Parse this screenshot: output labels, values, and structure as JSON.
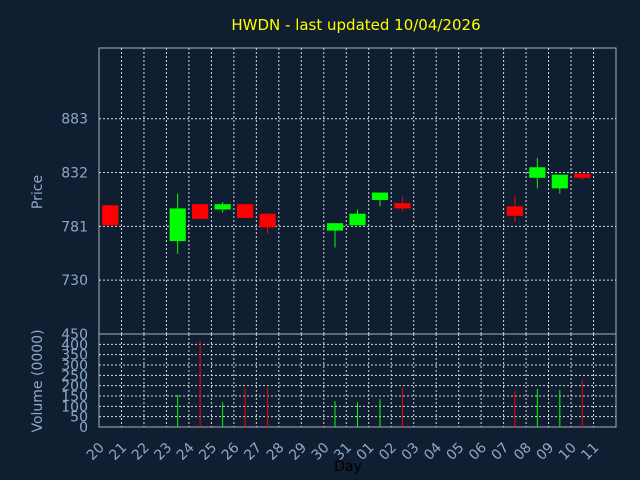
{
  "chart_data": [
    {
      "type": "candlestick",
      "title": "HWDN - last updated 10/04/2026",
      "ylabel": "Price",
      "ylim": [
        679,
        950
      ],
      "yticks": [
        730,
        781,
        832,
        883
      ],
      "grid": true,
      "colors": {
        "up": "#00ff00",
        "down": "#ff0000",
        "text": "#ffff00",
        "axis_label": "#8fa8c8",
        "background": "#0f1e31"
      },
      "candles": [
        {
          "day": "20",
          "open": 801,
          "high": 801,
          "low": 782,
          "close": 782
        },
        {
          "day": "23",
          "open": 767,
          "high": 812,
          "low": 755,
          "close": 798
        },
        {
          "day": "24",
          "open": 802,
          "high": 802,
          "low": 788,
          "close": 788
        },
        {
          "day": "25",
          "open": 797,
          "high": 804,
          "low": 794,
          "close": 802
        },
        {
          "day": "26",
          "open": 802,
          "high": 802,
          "low": 789,
          "close": 789
        },
        {
          "day": "27",
          "open": 793,
          "high": 793,
          "low": 774,
          "close": 780
        },
        {
          "day": "30",
          "open": 777,
          "high": 784,
          "low": 761,
          "close": 784
        },
        {
          "day": "31",
          "open": 782,
          "high": 797,
          "low": 782,
          "close": 793
        },
        {
          "day": "01",
          "open": 806,
          "high": 813,
          "low": 800,
          "close": 813
        },
        {
          "day": "02",
          "open": 803,
          "high": 809,
          "low": 795,
          "close": 798
        },
        {
          "day": "07",
          "open": 800,
          "high": 810,
          "low": 785,
          "close": 791
        },
        {
          "day": "08",
          "open": 827,
          "high": 846,
          "low": 817,
          "close": 837
        },
        {
          "day": "09",
          "open": 817,
          "high": 830,
          "low": 812,
          "close": 830
        },
        {
          "day": "10",
          "open": 831,
          "high": 831,
          "low": 825,
          "close": 827
        }
      ]
    },
    {
      "type": "bar",
      "ylabel": "Volume (0000)",
      "xlabel": "Day",
      "ylim": [
        0,
        450
      ],
      "yticks": [
        0,
        50,
        100,
        150,
        200,
        250,
        300,
        350,
        400,
        450
      ],
      "categories": [
        "20",
        "21",
        "22",
        "23",
        "24",
        "25",
        "26",
        "27",
        "28",
        "29",
        "30",
        "31",
        "01",
        "02",
        "03",
        "04",
        "05",
        "06",
        "07",
        "08",
        "09",
        "10",
        "11"
      ],
      "bars": [
        {
          "day": "23",
          "value": 155,
          "direction": "up"
        },
        {
          "day": "24",
          "value": 415,
          "direction": "down"
        },
        {
          "day": "25",
          "value": 120,
          "direction": "up"
        },
        {
          "day": "26",
          "value": 185,
          "direction": "down"
        },
        {
          "day": "27",
          "value": 190,
          "direction": "down"
        },
        {
          "day": "30",
          "value": 125,
          "direction": "up"
        },
        {
          "day": "31",
          "value": 120,
          "direction": "up"
        },
        {
          "day": "01",
          "value": 135,
          "direction": "up"
        },
        {
          "day": "02",
          "value": 190,
          "direction": "down"
        },
        {
          "day": "07",
          "value": 175,
          "direction": "down"
        },
        {
          "day": "08",
          "value": 185,
          "direction": "up"
        },
        {
          "day": "09",
          "value": 180,
          "direction": "up"
        },
        {
          "day": "10",
          "value": 230,
          "direction": "down"
        }
      ]
    }
  ]
}
